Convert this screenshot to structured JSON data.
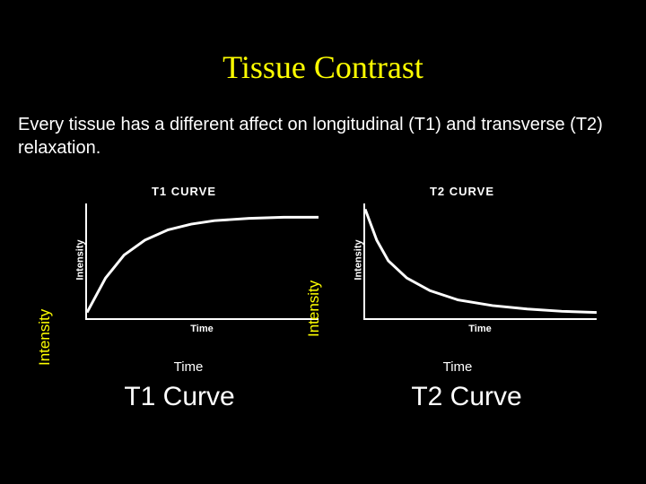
{
  "title": {
    "text": "Tissue Contrast",
    "color": "#ffff00",
    "font_family": "Times New Roman",
    "font_size": 36
  },
  "description": {
    "text": "Every tissue has a different affect on longitudinal (T1) and transverse (T2) relaxation.",
    "color": "#ffffff",
    "font_size": 20
  },
  "background_color": "#000000",
  "charts": {
    "t1": {
      "type": "line",
      "title": "T1 CURVE",
      "inner_xlabel": "Time",
      "inner_ylabel": "Intensity",
      "axis_color": "#ffffff",
      "line_color": "#ffffff",
      "line_width": 3,
      "label_color": "#ffffff",
      "label_fontsize": 11,
      "title_fontsize": 13,
      "xlim": [
        0,
        100
      ],
      "ylim": [
        0,
        100
      ],
      "points": [
        {
          "x": 0,
          "y": 5
        },
        {
          "x": 8,
          "y": 35
        },
        {
          "x": 16,
          "y": 55
        },
        {
          "x": 25,
          "y": 68
        },
        {
          "x": 35,
          "y": 77
        },
        {
          "x": 45,
          "y": 82
        },
        {
          "x": 55,
          "y": 85
        },
        {
          "x": 70,
          "y": 87
        },
        {
          "x": 85,
          "y": 88
        },
        {
          "x": 100,
          "y": 88
        }
      ]
    },
    "t2": {
      "type": "line",
      "title": "T2 CURVE",
      "inner_xlabel": "Time",
      "inner_ylabel": "Intensity",
      "axis_color": "#ffffff",
      "line_color": "#ffffff",
      "line_width": 3,
      "label_color": "#ffffff",
      "label_fontsize": 11,
      "title_fontsize": 13,
      "xlim": [
        0,
        100
      ],
      "ylim": [
        0,
        100
      ],
      "points": [
        {
          "x": 0,
          "y": 95
        },
        {
          "x": 5,
          "y": 68
        },
        {
          "x": 10,
          "y": 50
        },
        {
          "x": 18,
          "y": 35
        },
        {
          "x": 28,
          "y": 24
        },
        {
          "x": 40,
          "y": 16
        },
        {
          "x": 55,
          "y": 11
        },
        {
          "x": 70,
          "y": 8
        },
        {
          "x": 85,
          "y": 6
        },
        {
          "x": 100,
          "y": 5
        }
      ]
    }
  },
  "outer_labels": {
    "y_left": {
      "text": "Intensity",
      "color": "#ffff00",
      "font_size": 17
    },
    "y_right": {
      "text": "Intensity",
      "color": "#ffff00",
      "font_size": 17
    },
    "time_left": {
      "text": "Time",
      "color": "#ffffff",
      "font_size": 15
    },
    "time_right": {
      "text": "Time",
      "color": "#ffffff",
      "font_size": 15
    },
    "curve_left": {
      "text": "T1 Curve",
      "color": "#ffffff",
      "font_size": 30
    },
    "curve_right": {
      "text": "T2 Curve",
      "color": "#ffffff",
      "font_size": 30
    }
  }
}
